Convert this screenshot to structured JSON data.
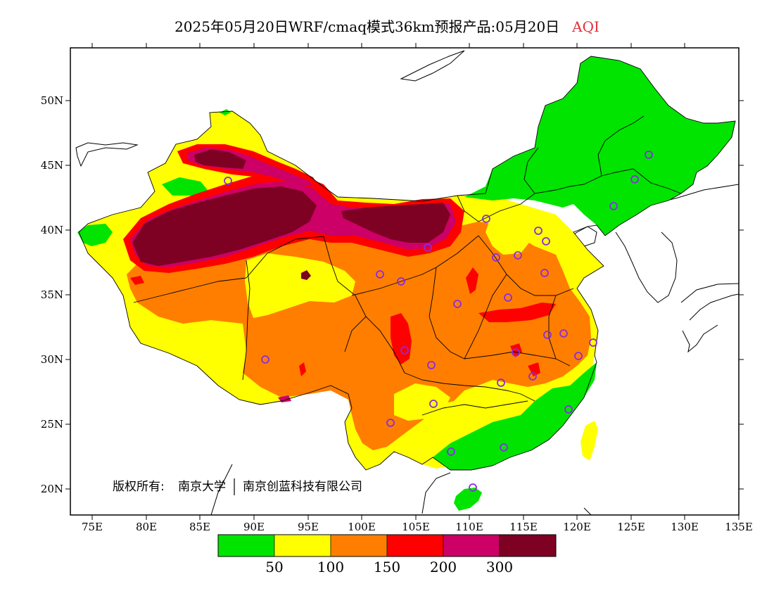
{
  "title": {
    "main": "2025年05月20日WRF/cmaq模式36km预报产品:05月20日",
    "product": "AQI"
  },
  "axes": {
    "y_ticks": [
      "50N",
      "45N",
      "40N",
      "35N",
      "30N",
      "25N",
      "20N"
    ],
    "x_ticks": [
      "75E",
      "80E",
      "85E",
      "90E",
      "95E",
      "100E",
      "105E",
      "110E",
      "115E",
      "120E",
      "125E",
      "130E",
      "135E"
    ]
  },
  "copyright": {
    "prefix": "版权所有:",
    "org1": "南京大学",
    "org2": "南京创蓝科技有限公司"
  },
  "legend": {
    "colors": [
      {
        "level": "0-50",
        "color": "#00e400"
      },
      {
        "level": "50-100",
        "color": "#ffff00"
      },
      {
        "level": "100-150",
        "color": "#ff7e00"
      },
      {
        "level": "150-200",
        "color": "#ff0000"
      },
      {
        "level": "200-300",
        "color": "#cc0066"
      },
      {
        "level": ">300",
        "color": "#7e0023"
      }
    ],
    "labels": [
      "50",
      "100",
      "150",
      "200",
      "300"
    ]
  },
  "colors": {
    "good": "#00e400",
    "moderate": "#ffff00",
    "usg": "#ff7e00",
    "unhealthy": "#ff0000",
    "very_unhealthy": "#cc0066",
    "hazardous": "#7e0023",
    "station_marker": "#8a2be2"
  },
  "icons": {
    "station": "circle-station-marker"
  }
}
